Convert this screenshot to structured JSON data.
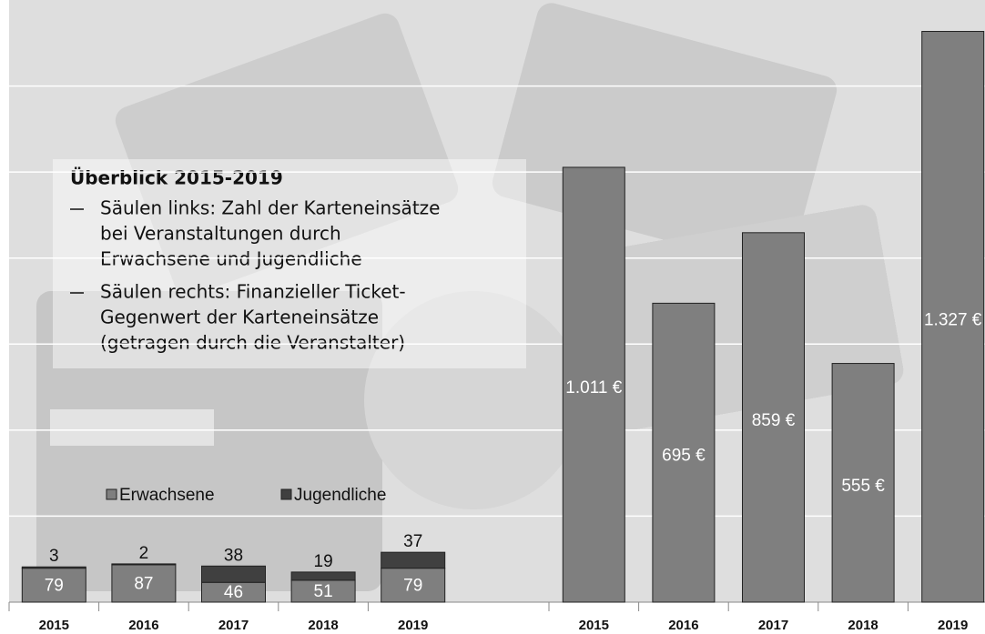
{
  "chart_data": [
    {
      "type": "stacked-bar",
      "categories": [
        "2015",
        "2016",
        "2017",
        "2018",
        "2019"
      ],
      "series": [
        {
          "name": "Erwachsene",
          "color": "#7f7f7f",
          "values": [
            79,
            87,
            46,
            51,
            79
          ]
        },
        {
          "name": "Jugendliche",
          "color": "#404040",
          "values": [
            3,
            2,
            38,
            19,
            37
          ]
        }
      ],
      "ylim": [
        0,
        1400
      ]
    },
    {
      "type": "bar",
      "categories": [
        "2015",
        "2016",
        "2017",
        "2018",
        "2019"
      ],
      "values": [
        1011,
        695,
        859,
        555,
        1327
      ],
      "value_labels": [
        "1.011 €",
        "695 €",
        "859 €",
        "555 €",
        "1.327 €"
      ],
      "color": "#7f7f7f",
      "ylim": [
        0,
        1400
      ],
      "yticks": [
        200,
        400,
        600,
        800,
        1000,
        1200
      ],
      "grid": true
    }
  ],
  "overview": {
    "title": "Überblick 2015-2019",
    "items": [
      [
        "Säulen links: Zahl der Karteneinsätze",
        "bei Veranstaltungen durch",
        "Erwachsene und Jugendliche"
      ],
      [
        "Säulen rechts: Finanzieller Ticket-",
        "Gegenwert der Karteneinsätze",
        "(getragen durch die Veranstalter)"
      ]
    ]
  }
}
